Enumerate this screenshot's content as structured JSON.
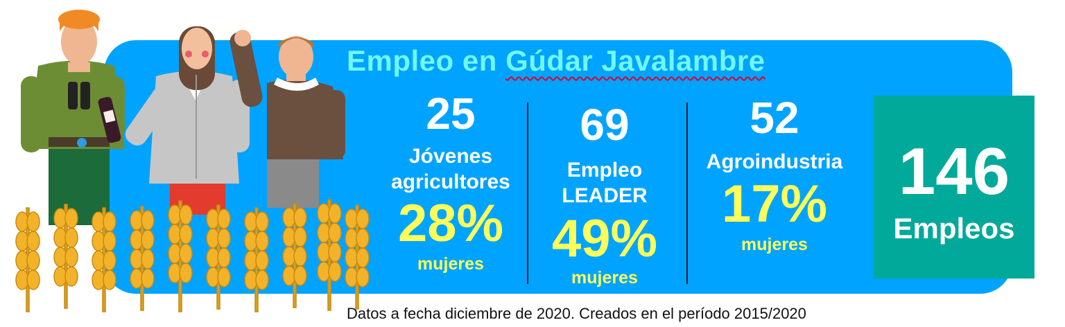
{
  "title": {
    "prefix": "Empleo en ",
    "place": "Gúdar Javalambre"
  },
  "stats": [
    {
      "number": "25",
      "label_line1": "Jóvenes",
      "label_line2": "agricultores",
      "percent": "28%",
      "percent_label": "mujeres"
    },
    {
      "number": "69",
      "label_line1": "Empleo",
      "label_line2": "LEADER",
      "percent": "49%",
      "percent_label": "mujeres"
    },
    {
      "number": "52",
      "label_line1": "Agroindustria",
      "label_line2": "",
      "percent": "17%",
      "percent_label": "mujeres"
    }
  ],
  "total": {
    "number": "146",
    "label": "Empleos"
  },
  "footnote": "Datos a fecha diciembre de 2020. Creados en el período 2015/2020",
  "colors": {
    "panel": "#00a3ff",
    "title": "#6ff7f0",
    "highlight_percent": "#ffff5a",
    "total_box": "#00a999",
    "wheat": "#f2b32a"
  },
  "illustration": "three people (hiker with binoculars and wine bottle, woman in grey jacket, man waving) standing in a wheat field"
}
